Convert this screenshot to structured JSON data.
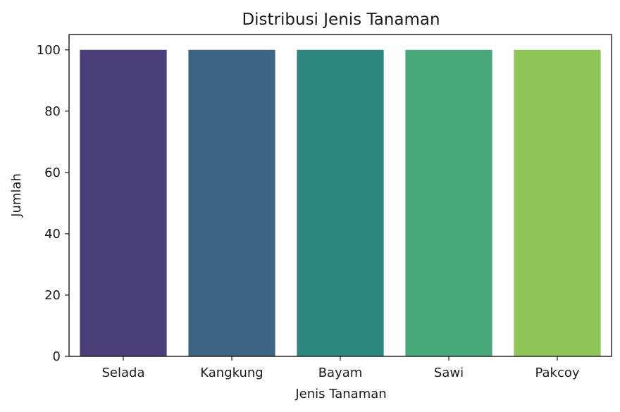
{
  "chart_data": {
    "type": "bar",
    "title": "Distribusi Jenis Tanaman",
    "xlabel": "Jenis Tanaman",
    "ylabel": "Jumlah",
    "categories": [
      "Selada",
      "Kangkung",
      "Bayam",
      "Sawi",
      "Pakcoy"
    ],
    "values": [
      100,
      100,
      100,
      100,
      100
    ],
    "colors": [
      "#4a3d78",
      "#3d6583",
      "#2d857f",
      "#48a87a",
      "#8ec458"
    ],
    "ylim": [
      0,
      105
    ],
    "yticks": [
      0,
      20,
      40,
      60,
      80,
      100
    ],
    "grid": false,
    "legend": false
  }
}
